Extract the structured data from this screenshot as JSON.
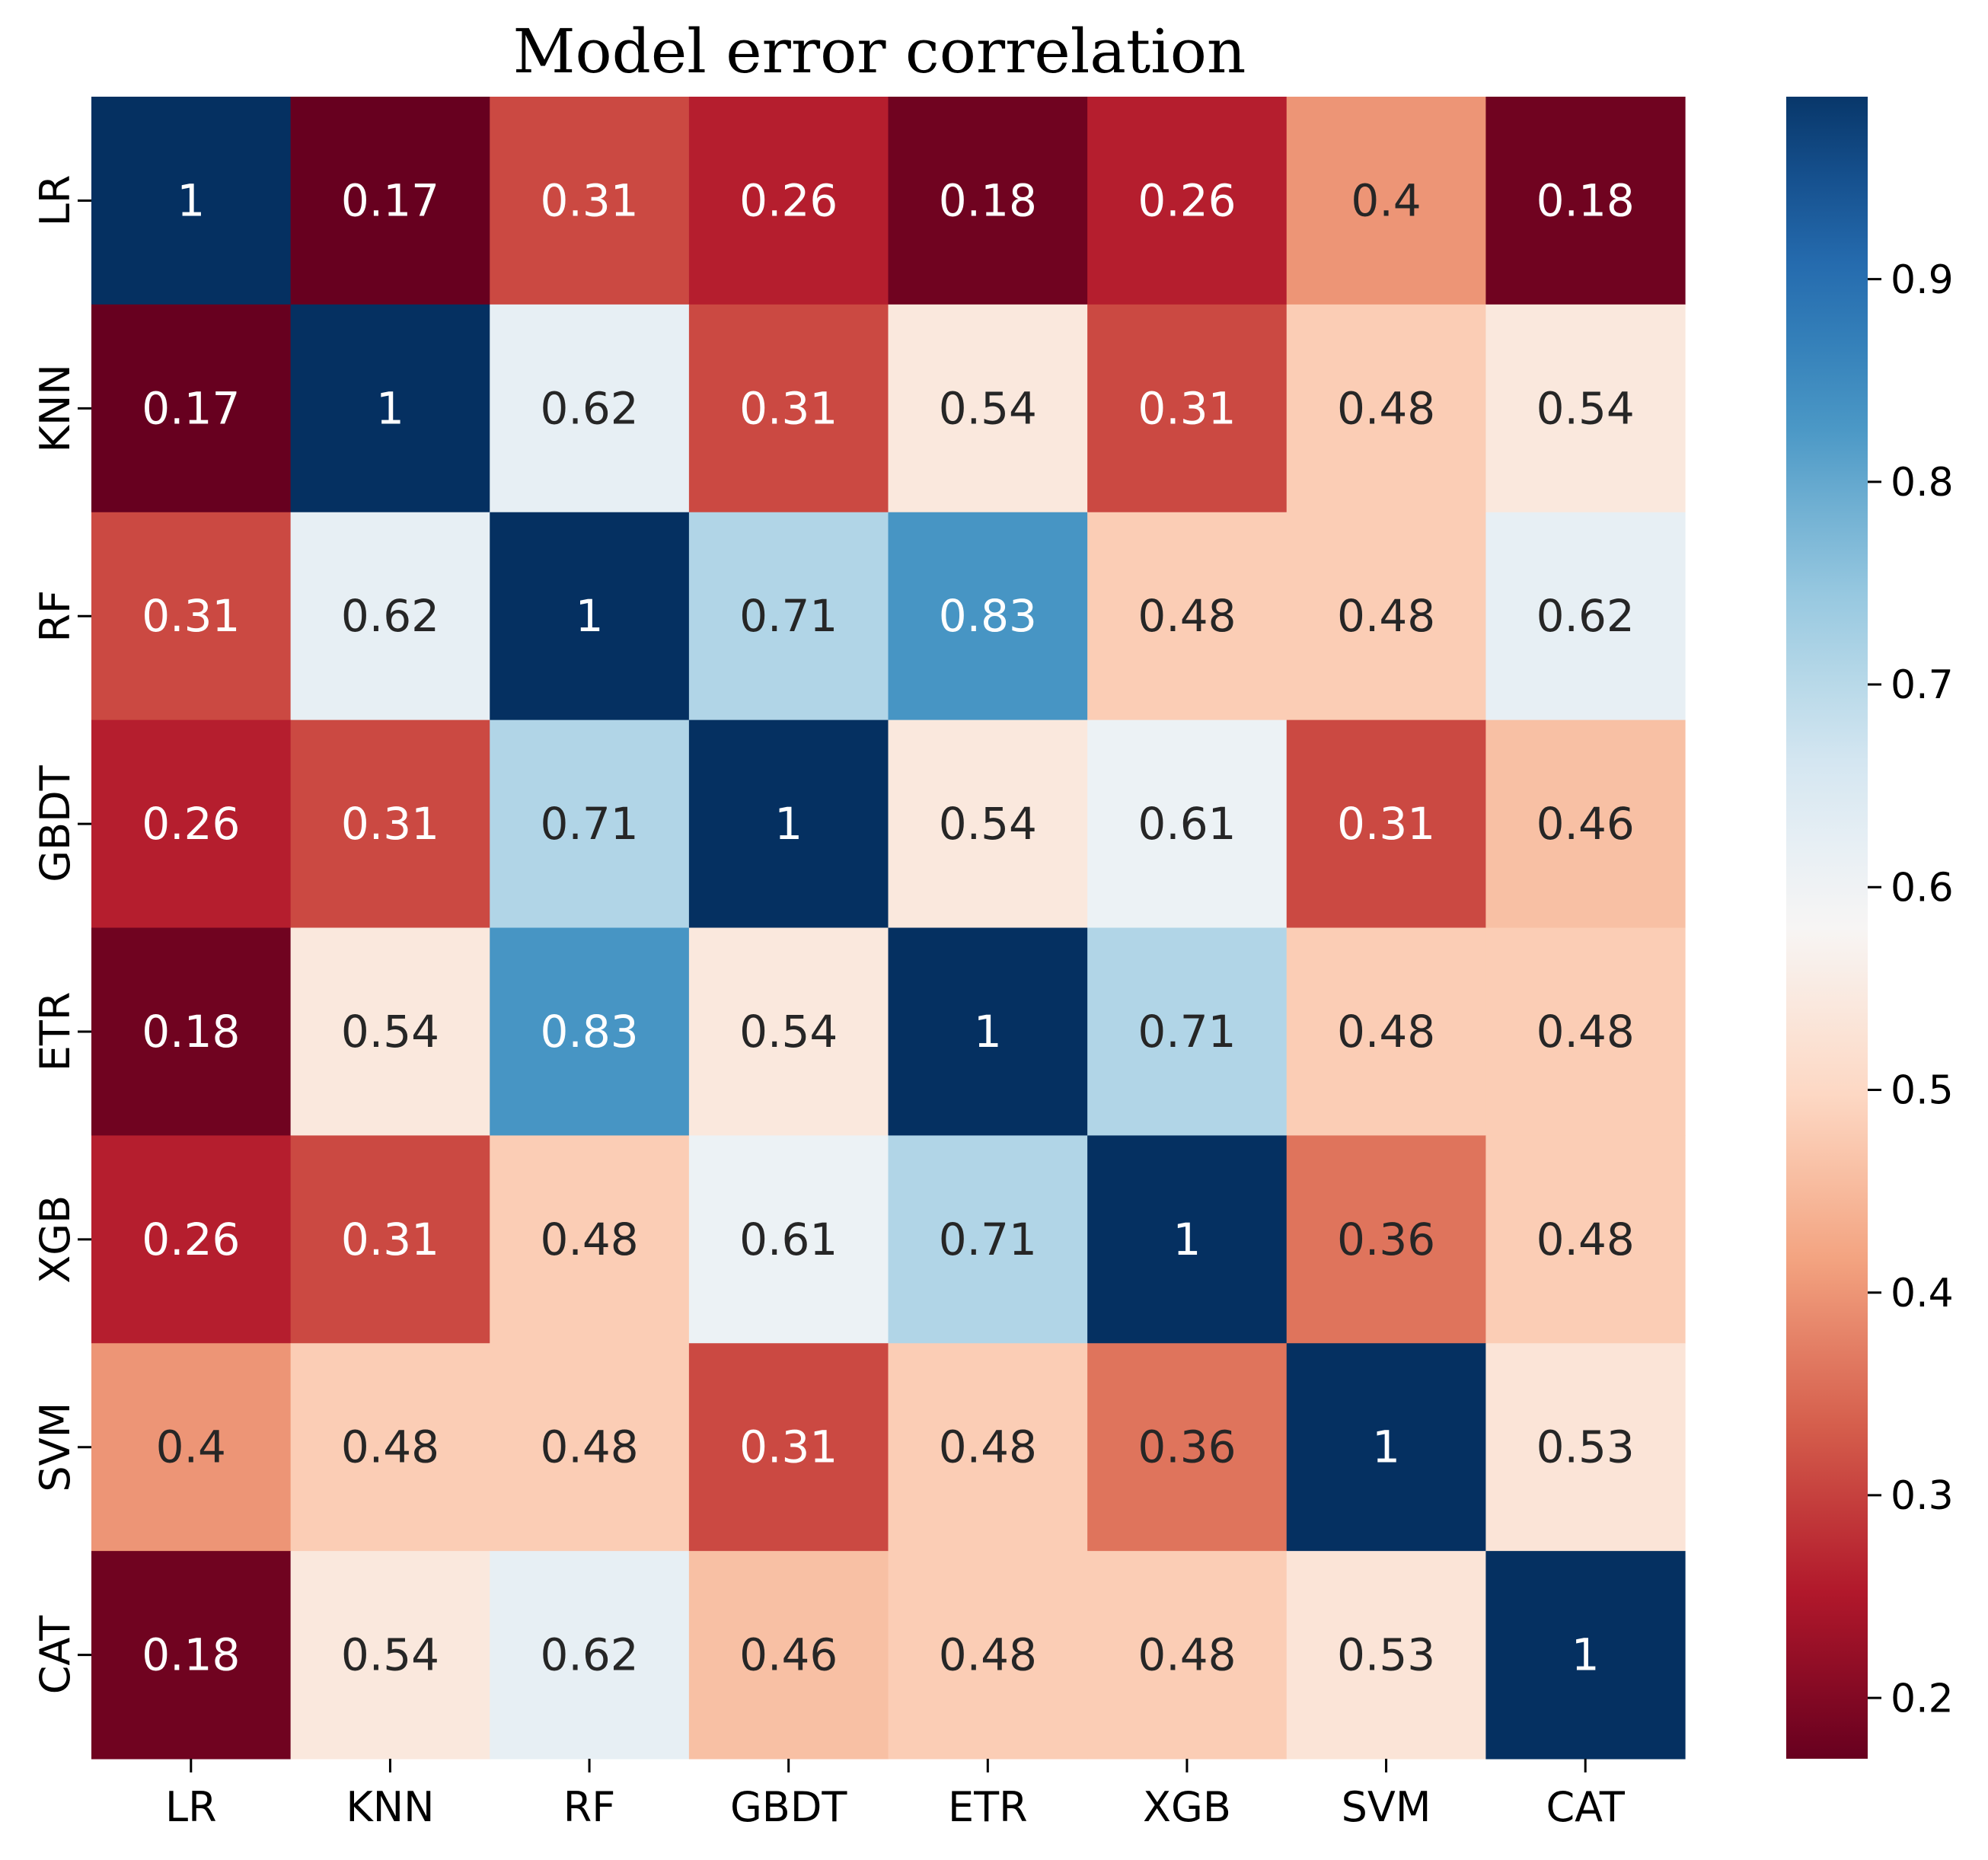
{
  "chart_data": {
    "type": "heatmap",
    "title": "Model error correlation",
    "xlabel": "",
    "ylabel": "",
    "categories": [
      "LR",
      "KNN",
      "RF",
      "GBDT",
      "ETR",
      "XGB",
      "SVM",
      "CAT"
    ],
    "matrix": [
      [
        1,
        0.17,
        0.31,
        0.26,
        0.18,
        0.26,
        0.4,
        0.18
      ],
      [
        0.17,
        1,
        0.62,
        0.31,
        0.54,
        0.31,
        0.48,
        0.54
      ],
      [
        0.31,
        0.62,
        1,
        0.71,
        0.83,
        0.48,
        0.48,
        0.62
      ],
      [
        0.26,
        0.31,
        0.71,
        1,
        0.54,
        0.61,
        0.31,
        0.46
      ],
      [
        0.18,
        0.54,
        0.83,
        0.54,
        1,
        0.71,
        0.48,
        0.48
      ],
      [
        0.26,
        0.31,
        0.48,
        0.61,
        0.71,
        1,
        0.36,
        0.48
      ],
      [
        0.4,
        0.48,
        0.48,
        0.31,
        0.48,
        0.36,
        1,
        0.53
      ],
      [
        0.18,
        0.54,
        0.62,
        0.46,
        0.48,
        0.48,
        0.53,
        1
      ]
    ],
    "colormap": "RdBu",
    "vmin": 0.17,
    "vmax": 1.0,
    "colorbar_ticks": [
      0.2,
      0.3,
      0.4,
      0.5,
      0.6,
      0.7,
      0.8,
      0.9
    ],
    "colorbar_display_max": 0.99,
    "grid": false,
    "legend": "colorbar-right"
  },
  "colors": {
    "rdbu_stops": [
      "#67001f",
      "#b2182b",
      "#d6604d",
      "#f4a582",
      "#fddbc7",
      "#f7f7f7",
      "#d1e5f0",
      "#92c5de",
      "#4393c3",
      "#2166ac",
      "#053061"
    ],
    "text_dark": "#262626",
    "text_light": "#ffffff"
  }
}
